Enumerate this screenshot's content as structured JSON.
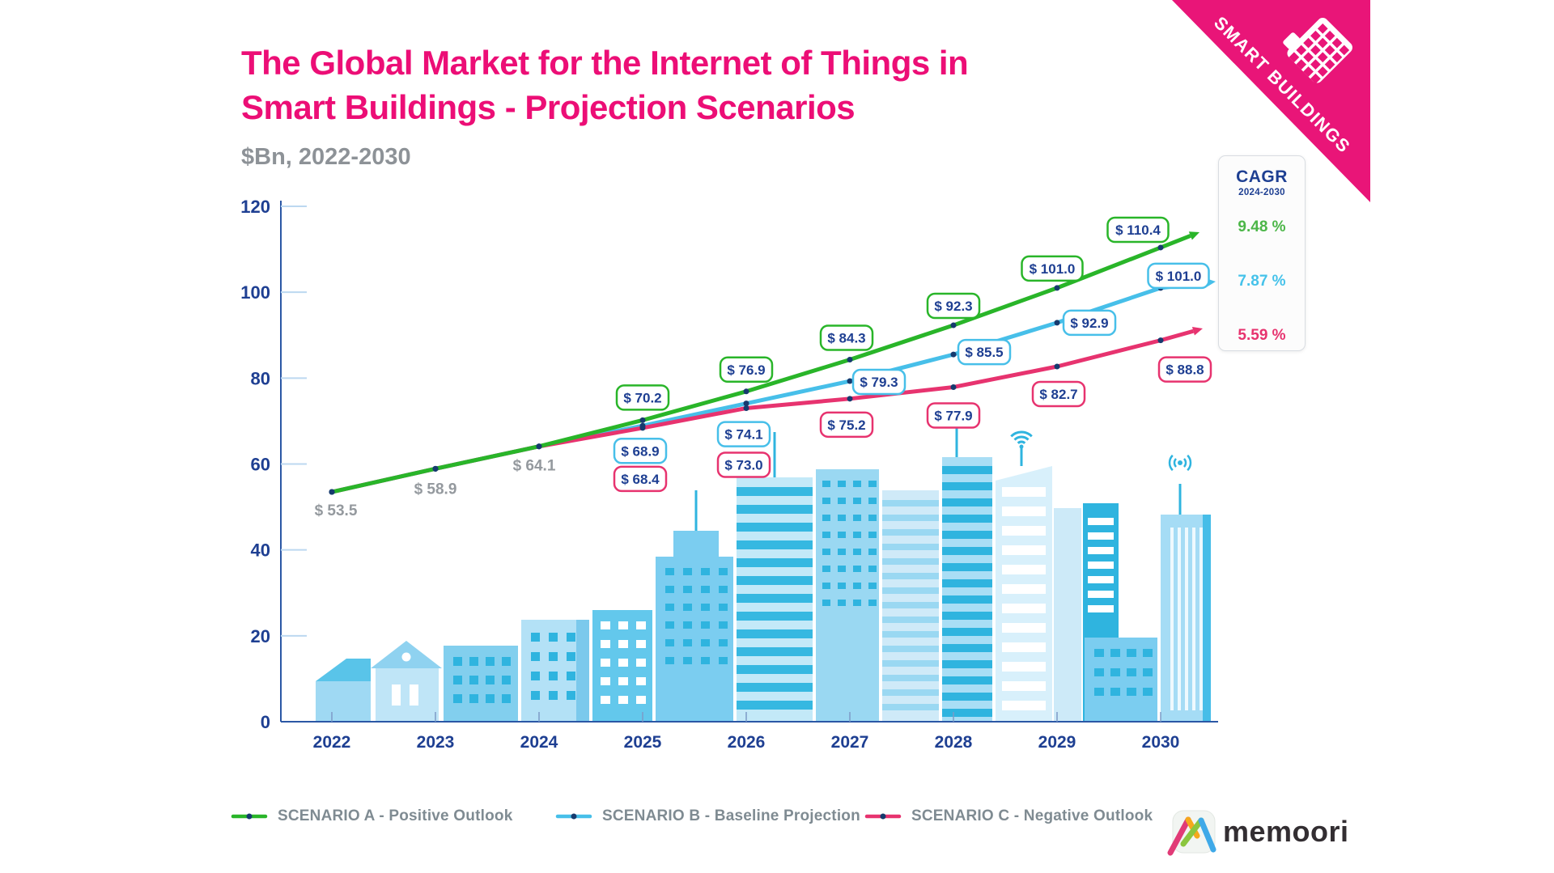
{
  "title": {
    "line1": "The Global Market for the Internet of Things in",
    "line2": "Smart Buildings - Projection Scenarios",
    "subtitle": "$Bn, 2022-2030"
  },
  "ribbon": {
    "label": "SMART BUILDINGS",
    "color": "#e91578"
  },
  "cagr": {
    "heading": "CAGR",
    "period": "2024-2030",
    "values": [
      {
        "label": "9.48 %",
        "color": "#4cb648"
      },
      {
        "label": "7.87 %",
        "color": "#45c2ea"
      },
      {
        "label": "5.59 %",
        "color": "#e7336f"
      }
    ]
  },
  "chart_data": {
    "type": "line",
    "title": "The Global Market for the Internet of Things in Smart Buildings - Projection Scenarios",
    "unit": "$Bn",
    "x": [
      "2022",
      "2023",
      "2024",
      "2025",
      "2026",
      "2027",
      "2028",
      "2029",
      "2030"
    ],
    "series": [
      {
        "name": "SCENARIO A - Positive Outlook",
        "color": "#29b529",
        "values": [
          53.5,
          58.9,
          64.1,
          70.2,
          76.9,
          84.3,
          92.3,
          101.0,
          110.4
        ]
      },
      {
        "name": "SCENARIO B - Baseline Projection",
        "color": "#47bfe9",
        "values": [
          53.5,
          58.9,
          64.1,
          68.9,
          74.1,
          79.3,
          85.5,
          92.9,
          101.0
        ]
      },
      {
        "name": "SCENARIO C - Negative Outlook",
        "color": "#e7336f",
        "values": [
          53.5,
          58.9,
          64.1,
          68.4,
          73.0,
          75.2,
          77.9,
          82.7,
          88.8
        ]
      }
    ],
    "yticks": [
      0,
      20,
      40,
      60,
      80,
      100,
      120
    ],
    "ylim": [
      0,
      120
    ],
    "grid": false,
    "legend_position": "bottom",
    "label_prefix": "$ ",
    "shared_values_through": "2024"
  },
  "legend": {
    "items": [
      {
        "label": "SCENARIO A - Positive Outlook",
        "color": "#29b529"
      },
      {
        "label": "SCENARIO B - Baseline Projection",
        "color": "#47bfe9"
      },
      {
        "label": "SCENARIO C - Negative Outlook",
        "color": "#e7336f"
      }
    ]
  },
  "logo": {
    "text": "memoori"
  },
  "colors": {
    "title_pink": "#ec0e76",
    "navy": "#1e3f92",
    "gray_label": "#94999e",
    "legend_text": "#7f8b92",
    "ribbon_pink": "#e91578"
  }
}
